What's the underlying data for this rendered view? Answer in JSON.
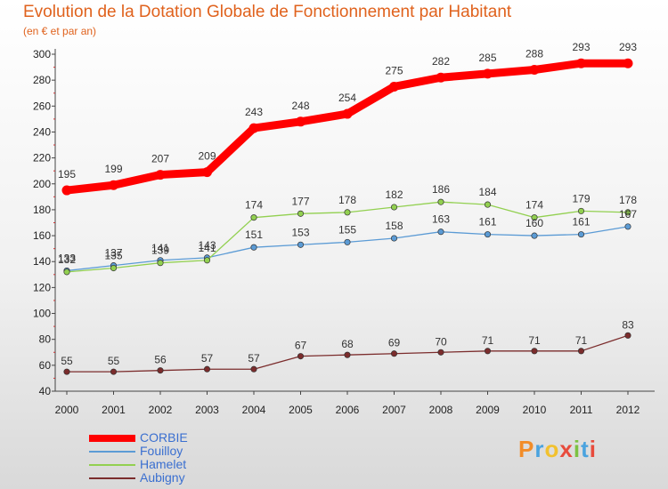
{
  "title": "Evolution de la Dotation Globale de Fonctionnement par Habitant",
  "subtitle": "(en € et par an)",
  "logo": {
    "text": "Proxiti",
    "colors": [
      "#f28c28",
      "#4aa3df",
      "#f2c12e",
      "#e84b3c",
      "#7cc242",
      "#4aa3df",
      "#e84b3c"
    ]
  },
  "chart_data": {
    "type": "line",
    "x": [
      "2000",
      "2001",
      "2002",
      "2003",
      "2004",
      "2005",
      "2006",
      "2007",
      "2008",
      "2009",
      "2010",
      "2011",
      "2012"
    ],
    "ylim": [
      40,
      300
    ],
    "yticks": [
      40,
      60,
      80,
      100,
      120,
      140,
      160,
      180,
      200,
      220,
      240,
      260,
      280,
      300
    ],
    "grid": false,
    "legend_position": "bottom-left",
    "series": [
      {
        "name": "CORBIE",
        "color": "#ff0000",
        "values": [
          195,
          199,
          207,
          209,
          243,
          248,
          254,
          275,
          282,
          285,
          288,
          293,
          293
        ]
      },
      {
        "name": "Fouilloy",
        "color": "#5b9bd5",
        "values": [
          133,
          137,
          141,
          143,
          151,
          153,
          155,
          158,
          163,
          161,
          160,
          161,
          167
        ]
      },
      {
        "name": "Hamelet",
        "color": "#92d050",
        "values": [
          132,
          135,
          139,
          141,
          174,
          177,
          178,
          182,
          186,
          184,
          174,
          179,
          178
        ]
      },
      {
        "name": "Aubigny",
        "color": "#7b2c2c",
        "values": [
          55,
          55,
          56,
          57,
          57,
          67,
          68,
          69,
          70,
          71,
          71,
          71,
          83
        ]
      }
    ]
  }
}
